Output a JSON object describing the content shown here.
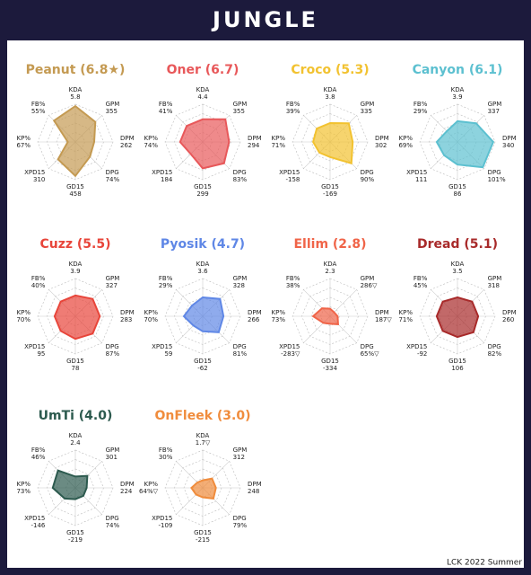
{
  "header": {
    "title": "JUNGLE"
  },
  "footer": "LCK 2022 Summer",
  "chart_data": [
    {
      "type": "radar",
      "title": "Peanut (6.8★)",
      "color": "#c49a52",
      "rlim": [
        0,
        10
      ],
      "axes": [
        "KDA",
        "GPM",
        "DPM",
        "DPG",
        "GD15",
        "XPD15",
        "KP%",
        "FB%"
      ],
      "axis_values": [
        "5.8",
        "355",
        "262",
        "74%",
        "458",
        "310",
        "67%",
        "55%"
      ],
      "values": [
        9.5,
        7.5,
        5,
        5.5,
        9,
        6.5,
        2,
        8
      ]
    },
    {
      "type": "radar",
      "title": "Oner (6.7)",
      "color": "#e8585a",
      "rlim": [
        0,
        10
      ],
      "axes": [
        "KDA",
        "GPM",
        "DPM",
        "DPG",
        "GD15",
        "XPD15",
        "KP%",
        "FB%"
      ],
      "axis_values": [
        "4.4",
        "355",
        "294",
        "83%",
        "299",
        "184",
        "74%",
        "41%"
      ],
      "values": [
        6,
        8.5,
        7,
        8,
        7,
        4.5,
        6,
        6
      ]
    },
    {
      "type": "radar",
      "title": "Croco (5.3)",
      "color": "#f2c230",
      "rlim": [
        0,
        10
      ],
      "axes": [
        "KDA",
        "GPM",
        "DPM",
        "DPG",
        "GD15",
        "XPD15",
        "KP%",
        "FB%"
      ],
      "axis_values": [
        "3.8",
        "335",
        "302",
        "90%",
        "-169",
        "-158",
        "71%",
        "39%"
      ],
      "values": [
        5,
        7,
        6,
        8,
        4,
        4,
        4.5,
        5
      ]
    },
    {
      "type": "radar",
      "title": "Canyon (6.1)",
      "color": "#5cc0d0",
      "rlim": [
        0,
        10
      ],
      "axes": [
        "KDA",
        "GPM",
        "DPM",
        "DPG",
        "GD15",
        "XPD15",
        "KP%",
        "FB%"
      ],
      "axis_values": [
        "3.9",
        "337",
        "340",
        "101%",
        "86",
        "111",
        "69%",
        "29%"
      ],
      "values": [
        5.5,
        7,
        9.5,
        9.5,
        6,
        5,
        5.5,
        4
      ]
    },
    {
      "type": "radar",
      "title": "Cuzz (5.5)",
      "color": "#e8453a",
      "rlim": [
        0,
        10
      ],
      "axes": [
        "KDA",
        "GPM",
        "DPM",
        "DPG",
        "GD15",
        "XPD15",
        "KP%",
        "FB%"
      ],
      "axis_values": [
        "3.9",
        "327",
        "283",
        "87%",
        "78",
        "95",
        "70%",
        "40%"
      ],
      "values": [
        5.5,
        6.5,
        6.5,
        6.5,
        6,
        5.5,
        5.5,
        5.5
      ]
    },
    {
      "type": "radar",
      "title": "Pyosik (4.7)",
      "color": "#5f87e6",
      "rlim": [
        0,
        10
      ],
      "axes": [
        "KDA",
        "GPM",
        "DPM",
        "DPG",
        "GD15",
        "XPD15",
        "KP%",
        "FB%"
      ],
      "axis_values": [
        "3.6",
        "328",
        "266",
        "81%",
        "-62",
        "59",
        "70%",
        "29%"
      ],
      "values": [
        5,
        6.5,
        5.5,
        6,
        4,
        3.5,
        5,
        4
      ]
    },
    {
      "type": "radar",
      "title": "Ellim (2.8)",
      "color": "#f06448",
      "rlim": [
        0,
        10
      ],
      "axes": [
        "KDA",
        "GPM",
        "DPM",
        "DPG",
        "GD15",
        "XPD15",
        "KP%",
        "FB%"
      ],
      "axis_values": [
        "2.3",
        "286▽",
        "187▽",
        "65%▽",
        "-334",
        "-283▽",
        "73%",
        "38%"
      ],
      "values": [
        2,
        1.5,
        2,
        3,
        2,
        2.5,
        4.5,
        3
      ]
    },
    {
      "type": "radar",
      "title": "Dread (5.1)",
      "color": "#a82a2a",
      "rlim": [
        0,
        10
      ],
      "axes": [
        "KDA",
        "GPM",
        "DPM",
        "DPG",
        "GD15",
        "XPD15",
        "KP%",
        "FB%"
      ],
      "axis_values": [
        "3.5",
        "318",
        "260",
        "82%",
        "106",
        "-92",
        "71%",
        "45%"
      ],
      "values": [
        5,
        5.5,
        5.5,
        6,
        5.5,
        5.5,
        5.5,
        5.5
      ]
    },
    {
      "type": "radar",
      "title": "UmTi (4.0)",
      "color": "#2c5a4e",
      "rlim": [
        0,
        10
      ],
      "axes": [
        "KDA",
        "GPM",
        "DPM",
        "DPG",
        "GD15",
        "XPD15",
        "KP%",
        "FB%"
      ],
      "axis_values": [
        "2.4",
        "301",
        "224",
        "74%",
        "-219",
        "-146",
        "73%",
        "46%"
      ],
      "values": [
        3,
        4.5,
        3,
        3,
        3,
        4,
        6,
        6.5
      ]
    },
    {
      "type": "radar",
      "title": "OnFleek (3.0)",
      "color": "#f08c3c",
      "rlim": [
        0,
        10
      ],
      "axes": [
        "KDA",
        "GPM",
        "DPM",
        "DPG",
        "GD15",
        "XPD15",
        "KP%",
        "FB%"
      ],
      "axis_values": [
        "1.7▽",
        "312",
        "248",
        "79%",
        "-215",
        "-109",
        "64%▽",
        "30%"
      ],
      "values": [
        2,
        3.5,
        3.5,
        4,
        2.5,
        2.5,
        3,
        2
      ]
    }
  ]
}
